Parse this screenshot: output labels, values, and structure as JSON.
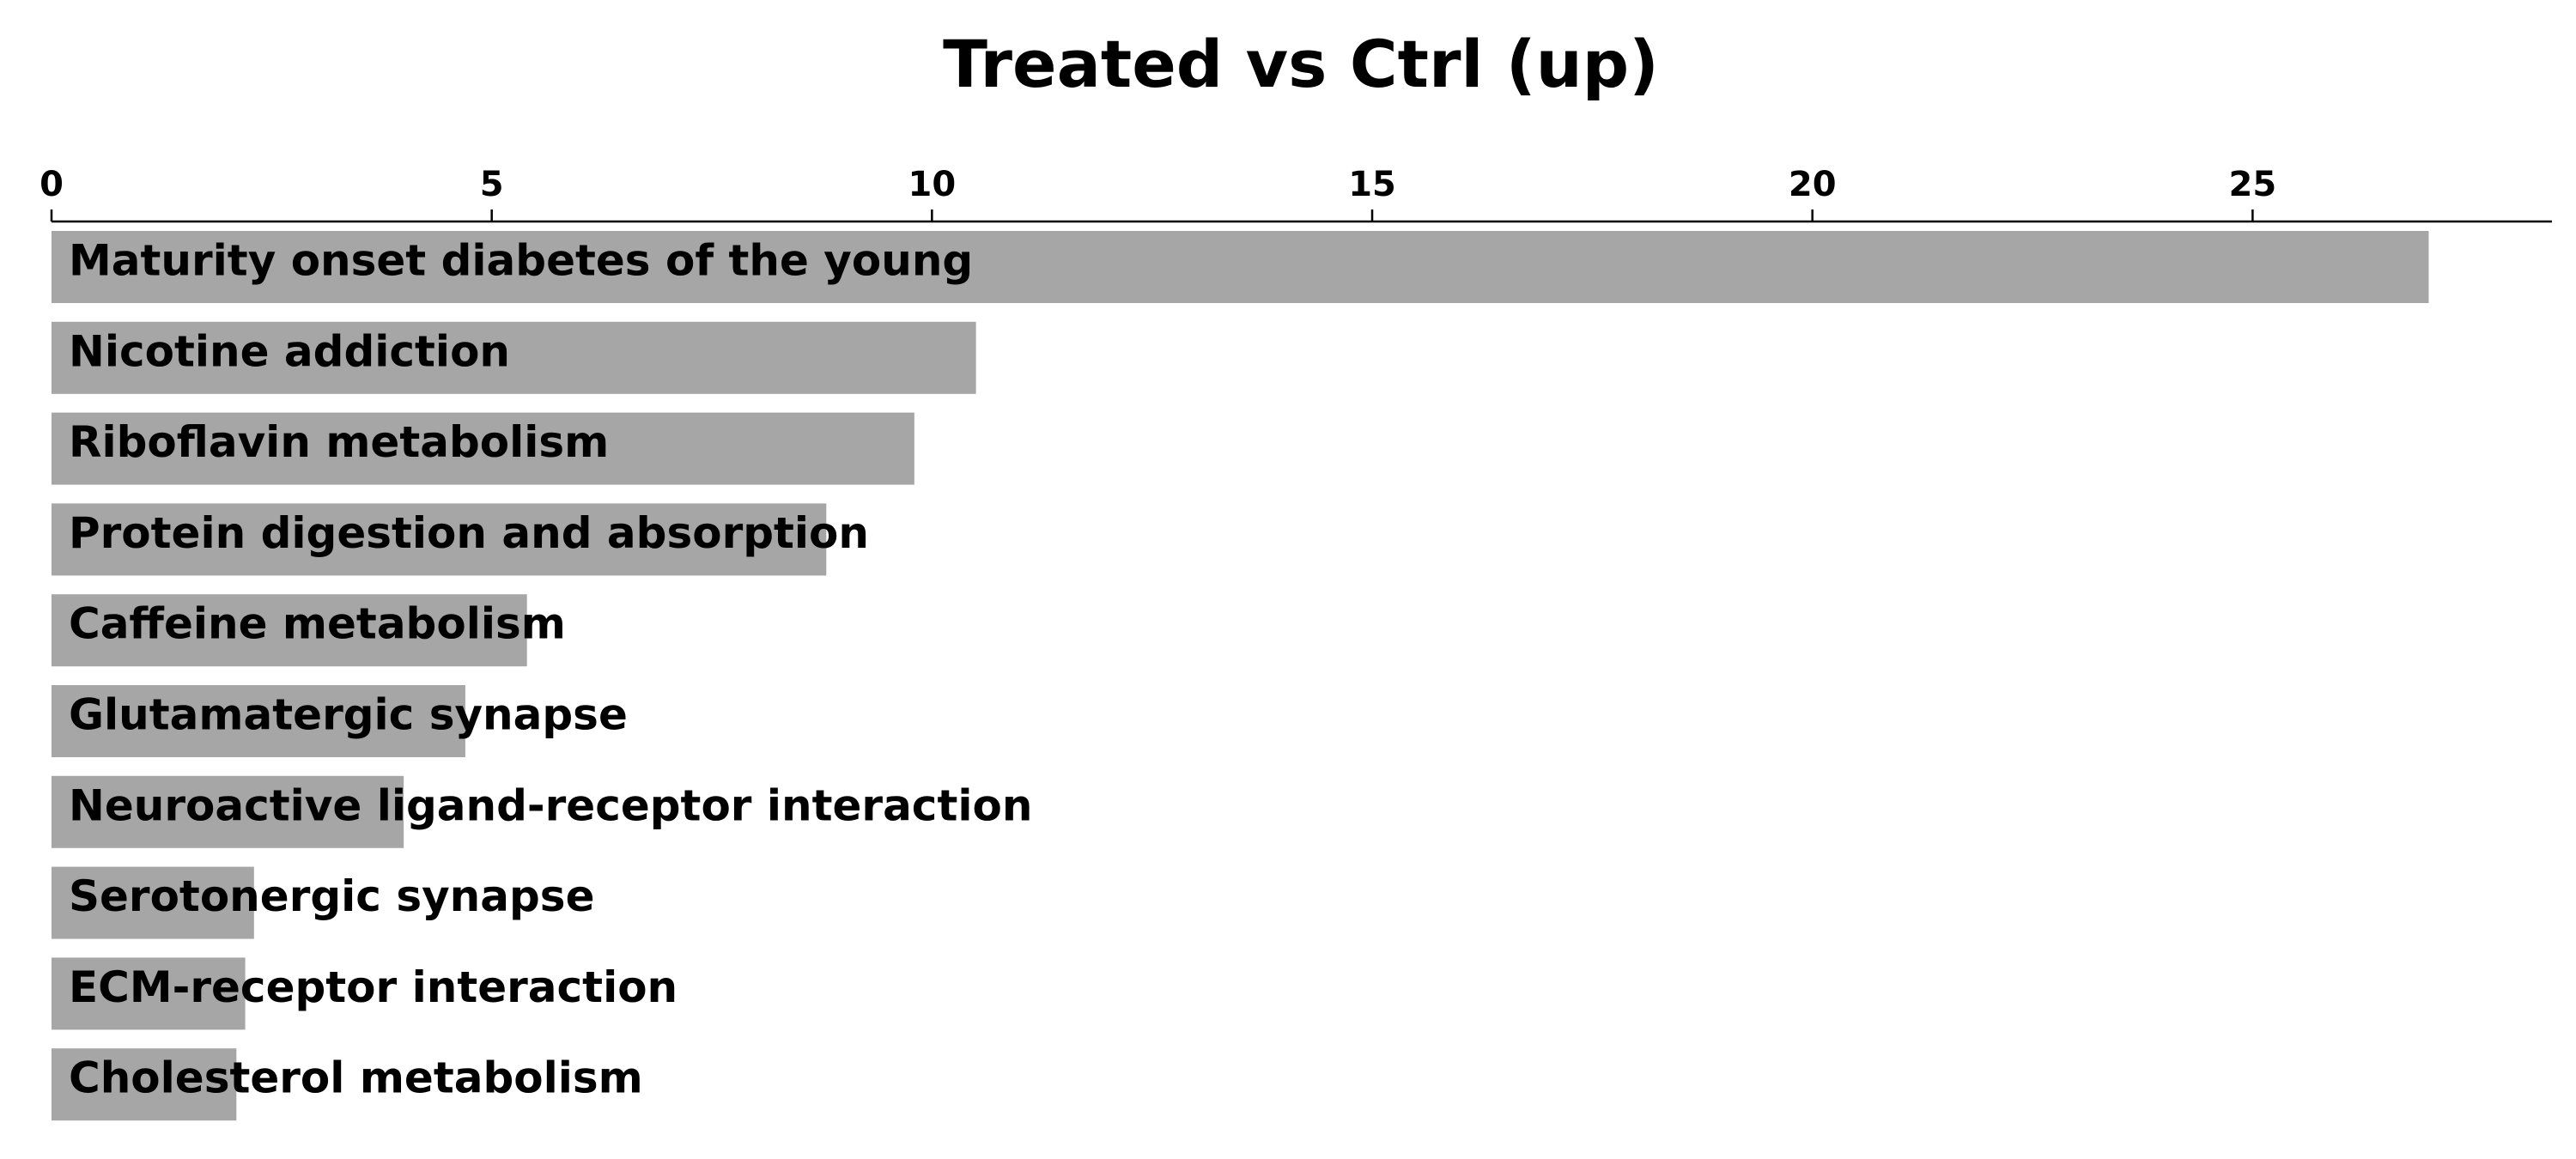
{
  "chart_data": {
    "type": "bar",
    "orientation": "horizontal",
    "title": "Treated vs Ctrl (up)",
    "xlabel": "",
    "ylabel": "",
    "categories": [
      "Maturity onset diabetes of the young",
      "Nicotine addiction",
      "Riboflavin metabolism",
      "Protein digestion and absorption",
      "Caffeine metabolism",
      "Glutamatergic synapse",
      "Neuroactive ligand-receptor interaction",
      "Serotonergic synapse",
      "ECM-receptor interaction",
      "Cholesterol metabolism"
    ],
    "values": [
      27.0,
      10.5,
      9.8,
      8.8,
      5.4,
      4.7,
      4.0,
      2.3,
      2.2,
      2.1
    ],
    "xlim": [
      0,
      28.4
    ],
    "xticks": [
      0,
      5,
      10,
      15,
      20,
      25
    ],
    "x_axis_position": "top",
    "grid": false,
    "legend": "none",
    "bar_color": "#a6a6a6"
  }
}
